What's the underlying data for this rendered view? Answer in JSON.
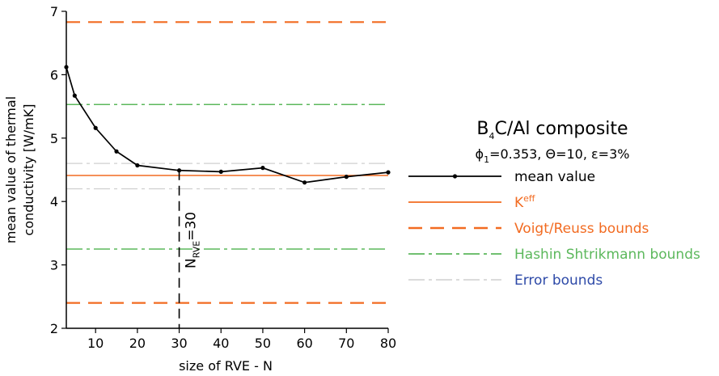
{
  "chart_data": {
    "type": "line",
    "title": "B4C/Al composite",
    "title_parts": {
      "main": "B",
      "sub": "4",
      "rest": "C/Al composite"
    },
    "subtitle": "ϕ1=0.353, Θ=10, ε=3%",
    "subtitle_parts": {
      "phi": "ϕ",
      "phi_sub": "1",
      "rest": "=0.353, Θ=10, ε=3%"
    },
    "xlabel": "size of RVE - N",
    "ylabel": [
      "mean value of thermal",
      "conductivity [W/mK]"
    ],
    "xlim": [
      3,
      80
    ],
    "ylim": [
      2,
      7
    ],
    "xticks": [
      10,
      20,
      30,
      40,
      50,
      60,
      70,
      80
    ],
    "yticks": [
      2,
      3,
      4,
      5,
      6,
      7
    ],
    "grid": false,
    "legend_placement": "right",
    "series": [
      {
        "name": "mean value",
        "style": "line-marker",
        "color": "#000000",
        "x": [
          3,
          5,
          10,
          15,
          20,
          30,
          40,
          50,
          60,
          70,
          80
        ],
        "y": [
          6.12,
          5.67,
          5.16,
          4.79,
          4.57,
          4.49,
          4.47,
          4.53,
          4.3,
          4.39,
          4.46
        ]
      }
    ],
    "reference_lines": [
      {
        "name": "K",
        "name_sup": "eff",
        "style": "solid",
        "color": "#f26b21",
        "values": [
          4.41
        ]
      },
      {
        "name": "Voigt/Reuss bounds",
        "style": "dashed",
        "color": "#f26b21",
        "values": [
          6.83,
          2.4
        ]
      },
      {
        "name": "Hashin Shtrikmann bounds",
        "style": "dashdot",
        "color": "#5cb85c",
        "values": [
          5.53,
          3.25
        ]
      },
      {
        "name": "Error bounds",
        "style": "dashdot-light",
        "color": "#cfcfcf",
        "values": [
          4.6,
          4.2
        ]
      }
    ],
    "annotation": {
      "base": "N",
      "sub": "RVE",
      "rest": "=30",
      "x": 30
    },
    "legend_label_colors": {
      "mean value": "#000000",
      "K": "#f26b21",
      "Voigt/Reuss bounds": "#f26b21",
      "Hashin Shtrikmann bounds": "#5cb85c",
      "Error bounds": "#2e4aa8"
    }
  }
}
